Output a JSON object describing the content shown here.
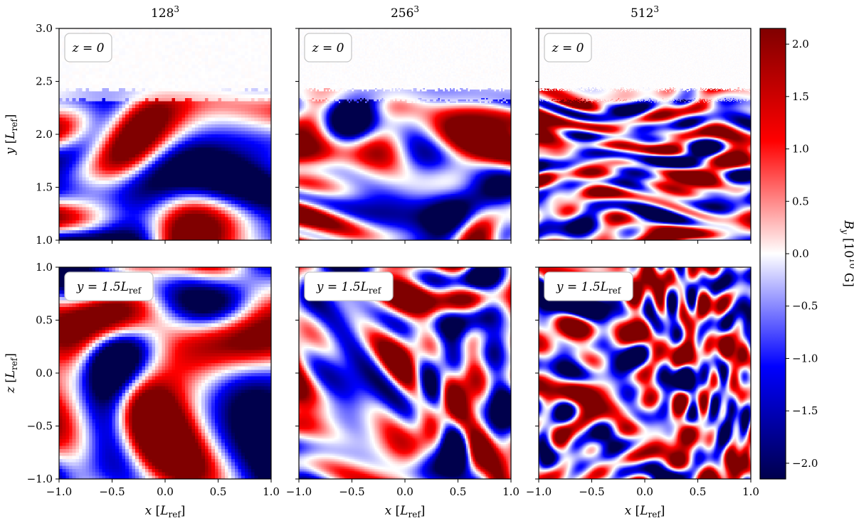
{
  "chart_data": {
    "type": "heatmap",
    "colormap": "seismic (blue-white-red)",
    "columns": [
      {
        "title_base": "128",
        "title_exp": "3"
      },
      {
        "title_base": "256",
        "title_exp": "3"
      },
      {
        "title_base": "512",
        "title_exp": "3"
      }
    ],
    "rows": [
      {
        "slice_label": "z = 0",
        "ylabel": "y [L_ref]",
        "ylabel_var": "y",
        "ylim": [
          1.0,
          3.0
        ],
        "yticks": [
          "1.0",
          "1.5",
          "2.0",
          "2.5",
          "3.0"
        ],
        "field_top_edge": 2.42
      },
      {
        "slice_label": "y = 1.5L_ref",
        "ylabel": "z [L_ref]",
        "ylabel_var": "z",
        "ylim": [
          -1.0,
          1.0
        ],
        "yticks": [
          "−1.0",
          "−0.5",
          "0.0",
          "0.5",
          "1.0"
        ]
      }
    ],
    "xlabel": "x [L_ref]",
    "xlabel_var": "x",
    "xlim": [
      -1.0,
      1.0
    ],
    "xticks": [
      "−1.0",
      "−0.5",
      "0.0",
      "0.5",
      "1.0"
    ],
    "colorbar": {
      "label": "B_y [10^10 G]",
      "label_var": "B",
      "label_sub": "y",
      "label_unit_base": "10",
      "label_unit_exp": "10",
      "label_unit_tail": "G",
      "min": -2.15,
      "max": 2.15,
      "ticks": [
        "−2.0",
        "−1.5",
        "−1.0",
        "−0.5",
        "0.0",
        "0.5",
        "1.0",
        "1.5",
        "2.0"
      ],
      "tick_values": [
        -2.0,
        -1.5,
        -1.0,
        -0.5,
        0.0,
        0.5,
        1.0,
        1.5,
        2.0
      ]
    },
    "label_parts": {
      "ref": "ref",
      "L": "L",
      "z_eq": "z = 0",
      "y_eq_prefix": "y = 1.5",
      "open": "[",
      "close": "]"
    },
    "colors": {
      "blue_dark": "#00004c",
      "blue": "#0000ff",
      "white": "#ffffff",
      "red": "#ff0000",
      "red_dark": "#800000"
    }
  }
}
